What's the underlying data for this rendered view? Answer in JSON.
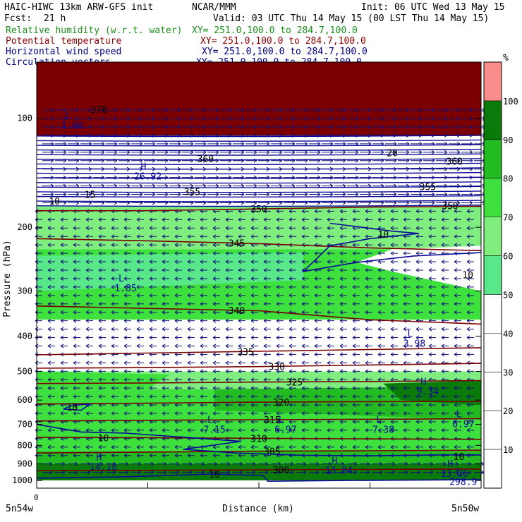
{
  "header": {
    "left_title": "HAIC-HIWC 13km ARW-GFS init",
    "org": "NCAR/MMM",
    "init": "Init: 06 UTC Wed 13 May 15",
    "fcst_label": "Fcst:",
    "fcst_value": "21 h",
    "valid": "Valid: 03 UTC Thu 14 May 15 (00 LST Thu 14 May 15)",
    "fields": [
      {
        "name": "Relative humidity (w.r.t. water)",
        "xy": "XY= 251.0,100.0 to 284.7,100.0",
        "color": "#1a8f1a"
      },
      {
        "name": "Potential temperature",
        "xy": "XY= 251.0,100.0 to 284.7,100.0",
        "color": "#8b0000"
      },
      {
        "name": "Horizontal wind speed",
        "xy": "XY= 251.0,100.0 to 284.7,100.0",
        "color": "#000080"
      },
      {
        "name": "Circulation vectors",
        "xy": "XY= 251.0,100.0 to 284.7,100.0",
        "color": "#000080"
      }
    ]
  },
  "colors": {
    "vector": "#10107a",
    "theta": "#7a0000",
    "wind": "#0a0a9a",
    "text": "#000000"
  },
  "chart_data": {
    "type": "heatmap",
    "ylabel": "Pressure (hPa)",
    "xlabel": "Distance (km)",
    "x_start_label": "5n54w",
    "x_end_label": "5n50w",
    "x_origin_label": "0",
    "y_scale": "log",
    "ylim": [
      1050,
      70
    ],
    "yticks": [
      100,
      200,
      300,
      400,
      500,
      600,
      700,
      800,
      900,
      1000
    ],
    "colorbar": {
      "unit": "%",
      "ticks": [
        10,
        20,
        30,
        40,
        50,
        60,
        70,
        80,
        90,
        100
      ],
      "bins": [
        {
          "lo": 0,
          "hi": 50,
          "color": "#ffffff"
        },
        {
          "lo": 50,
          "hi": 60,
          "color": "#58e88a"
        },
        {
          "lo": 60,
          "hi": 70,
          "color": "#7fee7f"
        },
        {
          "lo": 70,
          "hi": 80,
          "color": "#3ee03e"
        },
        {
          "lo": 80,
          "hi": 90,
          "color": "#22bb22"
        },
        {
          "lo": 90,
          "hi": 100,
          "color": "#0a7a0a"
        },
        {
          "lo": 100,
          "hi": 110,
          "color": "#e86e6e"
        },
        {
          "lo": 110,
          "hi": 120,
          "color": "#fa8c8c"
        }
      ]
    },
    "rh_layers": [
      {
        "p_top": 70,
        "p_bot": 112,
        "color": "#7a0000"
      },
      {
        "p_top": 112,
        "p_bot": 175,
        "color": "#ffffff"
      },
      {
        "p_top": 175,
        "p_bot": 230,
        "color": "#7fee7f"
      },
      {
        "p_top": 230,
        "p_bot": 360,
        "color": "#3ee03e"
      },
      {
        "p_top": 360,
        "p_bot": 455,
        "color": "#ffffff"
      },
      {
        "p_top": 455,
        "p_bot": 500,
        "color": "#ffffff"
      },
      {
        "p_top": 500,
        "p_bot": 560,
        "color": "#7fee7f"
      },
      {
        "p_top": 560,
        "p_bot": 680,
        "color": "#3ee03e"
      },
      {
        "p_top": 680,
        "p_bot": 830,
        "color": "#3ee03e"
      },
      {
        "p_top": 830,
        "p_bot": 900,
        "color": "#22bb22"
      },
      {
        "p_top": 900,
        "p_bot": 1000,
        "color": "#0a7a0a"
      },
      {
        "p_top": 1000,
        "p_bot": 1050,
        "color": "#ffffff"
      }
    ],
    "theta_contours": [
      {
        "value": "350",
        "p": [
          180,
          180,
          178,
          176,
          175
        ],
        "label_x": 0.5
      },
      {
        "value": "345",
        "p": [
          215,
          218,
          222,
          228,
          232
        ],
        "label_x": 0.45
      },
      {
        "value": "340",
        "p": [
          330,
          335,
          340,
          360,
          370
        ],
        "label_x": 0.45
      },
      {
        "value": "335",
        "p": [
          450,
          445,
          440,
          435,
          430
        ],
        "label_x": 0.47
      },
      {
        "value": "330",
        "p": [
          490,
          488,
          485,
          480,
          475
        ],
        "label_x": 0.54
      },
      {
        "value": "325",
        "p": [
          540,
          538,
          535,
          533,
          530
        ],
        "label_x": 0.58
      },
      {
        "value": "320",
        "p": [
          615,
          612,
          608,
          606,
          605
        ],
        "label_x": 0.55
      },
      {
        "value": "315",
        "p": [
          685,
          682,
          680,
          678,
          675
        ],
        "label_x": 0.53
      },
      {
        "value": "310",
        "p": [
          760,
          762,
          765,
          768,
          770
        ],
        "label_x": 0.5
      },
      {
        "value": "305",
        "p": [
          840,
          835,
          830,
          828,
          825
        ],
        "label_x": 0.53
      },
      {
        "value": "300",
        "p": [
          940,
          938,
          935,
          932,
          930
        ],
        "label_x": 0.55
      }
    ],
    "wind_labels": [
      {
        "text": "10",
        "x": 0.04,
        "p": 170
      },
      {
        "text": "15",
        "x": 0.12,
        "p": 163
      },
      {
        "text": "10",
        "x": 0.78,
        "p": 210
      },
      {
        "text": "10",
        "x": 0.97,
        "p": 272
      },
      {
        "text": "10",
        "x": 0.08,
        "p": 630
      },
      {
        "text": "10",
        "x": 0.15,
        "p": 765
      },
      {
        "text": "10",
        "x": 0.95,
        "p": 862
      },
      {
        "text": "10",
        "x": 0.4,
        "p": 965
      }
    ],
    "extrema": [
      {
        "kind": "L",
        "value": "1.85",
        "x": 0.2,
        "p": 295
      },
      {
        "kind": "L",
        "value": "3.98",
        "x": 0.85,
        "p": 420
      },
      {
        "kind": "H",
        "value": "9.34",
        "x": 0.88,
        "p": 570
      },
      {
        "kind": "L",
        "value": "7.15",
        "x": 0.4,
        "p": 725
      },
      {
        "kind": "L",
        "value": "6.97",
        "x": 0.56,
        "p": 725
      },
      {
        "kind": "L",
        "value": "7.38",
        "x": 0.78,
        "p": 725
      },
      {
        "kind": "L",
        "value": "6.97",
        "x": 0.96,
        "p": 700
      },
      {
        "kind": "H",
        "value": "14.18",
        "x": 0.15,
        "p": 920
      },
      {
        "kind": "H",
        "value": "13.84",
        "x": 0.68,
        "p": 940
      },
      {
        "kind": "H",
        "value": "13.36",
        "x": 0.94,
        "p": 960
      },
      {
        "kind": "L",
        "value": "298.9",
        "x": 0.96,
        "p": 1010
      },
      {
        "kind": "H",
        "value": "26.92",
        "x": 0.25,
        "p": 145
      },
      {
        "kind": "L",
        "value": "1.66",
        "x": 0.08,
        "p": 105
      }
    ],
    "top_labels": [
      {
        "text": "370",
        "x": 0.14,
        "p": 95
      },
      {
        "text": "360",
        "x": 0.38,
        "p": 130
      },
      {
        "text": "20",
        "x": 0.8,
        "p": 125
      },
      {
        "text": "360",
        "x": 0.94,
        "p": 132
      },
      {
        "text": "355",
        "x": 0.88,
        "p": 155
      },
      {
        "text": "350",
        "x": 0.93,
        "p": 175
      },
      {
        "text": "355",
        "x": 0.35,
        "p": 160
      }
    ]
  }
}
